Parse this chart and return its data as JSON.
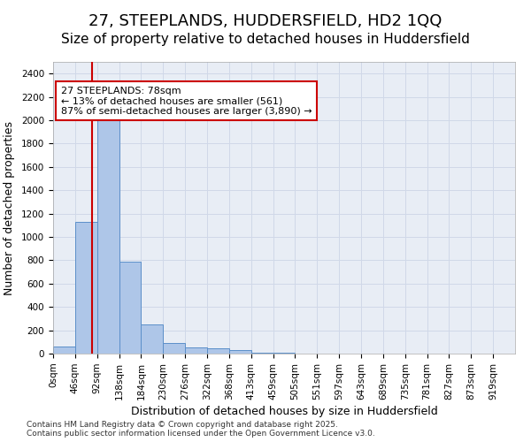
{
  "title_line1": "27, STEEPLANDS, HUDDERSFIELD, HD2 1QQ",
  "title_line2": "Size of property relative to detached houses in Huddersfield",
  "xlabel": "Distribution of detached houses by size in Huddersfield",
  "ylabel": "Number of detached properties",
  "footnote": "Contains HM Land Registry data © Crown copyright and database right 2025.\nContains public sector information licensed under the Open Government Licence v3.0.",
  "bin_labels": [
    "0sqm",
    "46sqm",
    "92sqm",
    "138sqm",
    "184sqm",
    "230sqm",
    "276sqm",
    "322sqm",
    "368sqm",
    "413sqm",
    "459sqm",
    "505sqm",
    "551sqm",
    "597sqm",
    "643sqm",
    "689sqm",
    "735sqm",
    "781sqm",
    "827sqm",
    "873sqm",
    "919sqm"
  ],
  "bar_values": [
    60,
    1130,
    2000,
    790,
    250,
    90,
    55,
    45,
    30,
    10,
    5,
    0,
    0,
    0,
    0,
    0,
    0,
    0,
    0,
    0,
    0
  ],
  "bar_color": "#aec6e8",
  "bar_edge_color": "#5b8fc9",
  "vline_x": 1.78,
  "vline_color": "#cc0000",
  "annotation_text": "27 STEEPLANDS: 78sqm\n← 13% of detached houses are smaller (561)\n87% of semi-detached houses are larger (3,890) →",
  "annotation_box_color": "#ffffff",
  "annotation_box_edge_color": "#cc0000",
  "ylim": [
    0,
    2500
  ],
  "yticks": [
    0,
    200,
    400,
    600,
    800,
    1000,
    1200,
    1400,
    1600,
    1800,
    2000,
    2200,
    2400
  ],
  "grid_color": "#d0d8e8",
  "bg_color": "#e8edf5",
  "title_fontsize": 13,
  "subtitle_fontsize": 11,
  "label_fontsize": 9,
  "tick_fontsize": 7.5
}
